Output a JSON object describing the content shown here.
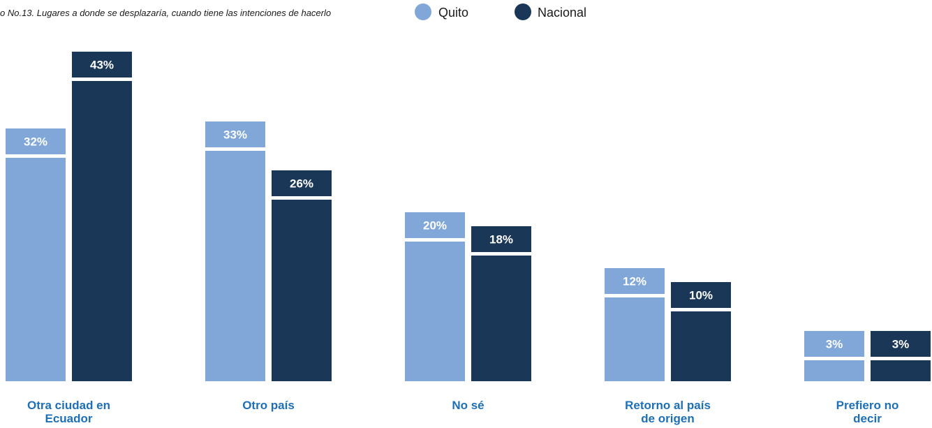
{
  "chart_data": {
    "type": "bar",
    "title": "o No.13. Lugares a donde se desplazaría, cuando tiene las intenciones de hacerlo",
    "categories": [
      [
        "Otra ciudad en",
        "Ecuador"
      ],
      [
        "Otro país"
      ],
      [
        "No sé"
      ],
      [
        "Retorno al país",
        "de origen"
      ],
      [
        "Prefiero no",
        "decir"
      ]
    ],
    "series": [
      {
        "name": "Quito",
        "color": "#80a7d8",
        "values": [
          32,
          33,
          20,
          12,
          3
        ],
        "labels": [
          "32%",
          "33%",
          "20%",
          "12%",
          "3%"
        ]
      },
      {
        "name": "Nacional",
        "color": "#1b3757",
        "values": [
          43,
          26,
          18,
          10,
          3
        ],
        "labels": [
          "43%",
          "26%",
          "18%",
          "10%",
          "3%"
        ]
      }
    ],
    "ylim": [
      0,
      43
    ],
    "grid": false,
    "legend_position": "top-center",
    "category_label_color": "#1f6fb5"
  }
}
